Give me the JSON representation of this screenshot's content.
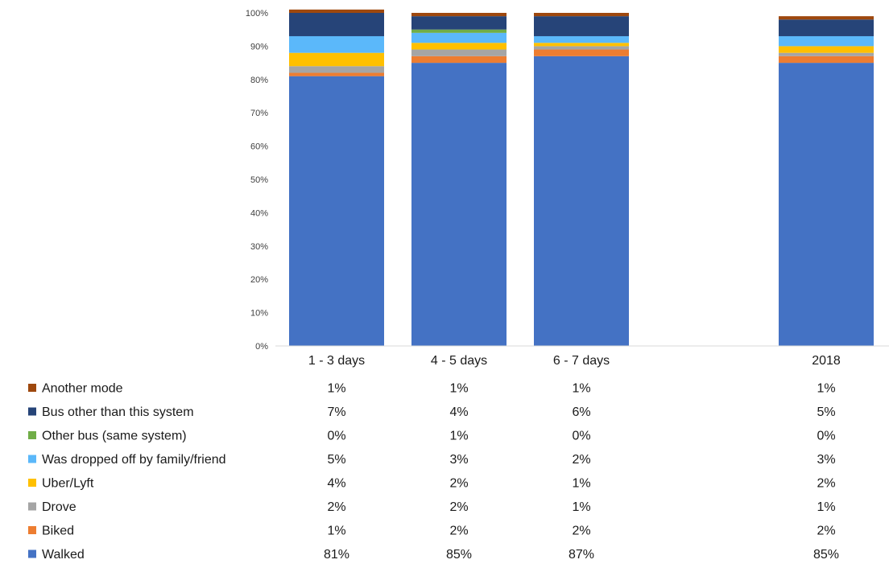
{
  "chart_data": {
    "type": "bar",
    "stacked": true,
    "percent": true,
    "categories": [
      "1 - 3 days",
      "4 - 5 days",
      "6 - 7 days",
      "",
      "2018"
    ],
    "yticks": [
      "0%",
      "10%",
      "20%",
      "30%",
      "40%",
      "50%",
      "60%",
      "70%",
      "80%",
      "90%",
      "100%"
    ],
    "ylim": [
      0,
      100
    ],
    "grid": false,
    "legend_placement": "bottom-left (data table)",
    "series": [
      {
        "name": "Walked",
        "color": "#4472C4",
        "values": [
          81,
          85,
          87,
          null,
          85
        ],
        "labels": [
          "81%",
          "85%",
          "87%",
          "",
          "85%"
        ]
      },
      {
        "name": "Biked",
        "color": "#ED7D31",
        "values": [
          1,
          2,
          2,
          null,
          2
        ],
        "labels": [
          "1%",
          "2%",
          "2%",
          "",
          "2%"
        ]
      },
      {
        "name": "Drove",
        "color": "#A5A5A5",
        "values": [
          2,
          2,
          1,
          null,
          1
        ],
        "labels": [
          "2%",
          "2%",
          "1%",
          "",
          "1%"
        ]
      },
      {
        "name": "Uber/Lyft",
        "color": "#FFC000",
        "values": [
          4,
          2,
          1,
          null,
          2
        ],
        "labels": [
          "4%",
          "2%",
          "1%",
          "",
          "2%"
        ]
      },
      {
        "name": "Was dropped off by family/friend",
        "color": "#5BB8FA",
        "values": [
          5,
          3,
          2,
          null,
          3
        ],
        "labels": [
          "5%",
          "3%",
          "2%",
          "",
          "3%"
        ]
      },
      {
        "name": "Other bus (same system)",
        "color": "#70AD47",
        "values": [
          0,
          1,
          0,
          null,
          0
        ],
        "labels": [
          "0%",
          "1%",
          "0%",
          "",
          "0%"
        ]
      },
      {
        "name": "Bus other than this system",
        "color": "#264478",
        "values": [
          7,
          4,
          6,
          null,
          5
        ],
        "labels": [
          "7%",
          "4%",
          "6%",
          "",
          "5%"
        ]
      },
      {
        "name": "Another mode",
        "color": "#9E480E",
        "values": [
          1,
          1,
          1,
          null,
          1
        ],
        "labels": [
          "1%",
          "1%",
          "1%",
          "",
          "1%"
        ]
      }
    ]
  }
}
